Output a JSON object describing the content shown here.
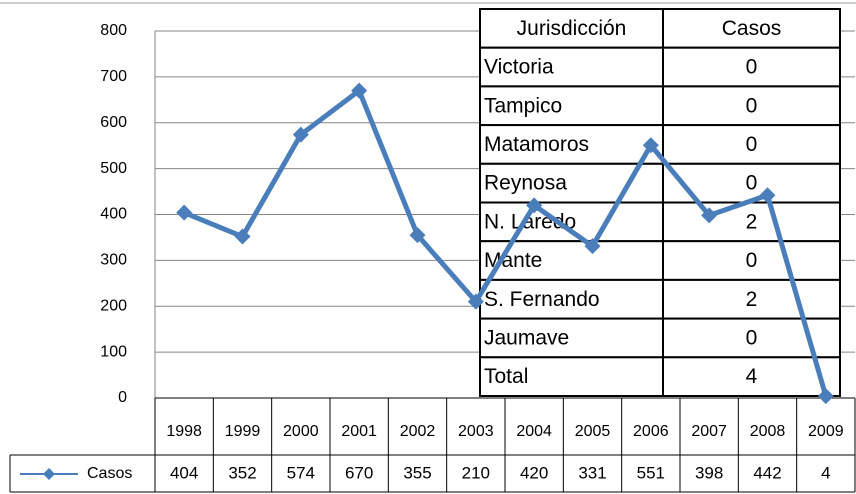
{
  "chart_data": {
    "type": "line",
    "categories": [
      "1998",
      "1999",
      "2000",
      "2001",
      "2002",
      "2003",
      "2004",
      "2005",
      "2006",
      "2007",
      "2008",
      "2009"
    ],
    "series": [
      {
        "name": "Casos",
        "color": "#4a7ebb",
        "values": [
          404,
          352,
          574,
          670,
          355,
          210,
          420,
          331,
          551,
          398,
          442,
          4
        ]
      }
    ],
    "ylim": [
      0,
      800
    ],
    "yticks": [
      0,
      100,
      200,
      300,
      400,
      500,
      600,
      700,
      800
    ],
    "grid": true
  },
  "table": {
    "header": [
      "Jurisdicción",
      "Casos"
    ],
    "rows": [
      [
        "Victoria",
        0
      ],
      [
        "Tampico",
        0
      ],
      [
        "Matamoros",
        0
      ],
      [
        "Reynosa",
        0
      ],
      [
        "N. Laredo",
        2
      ],
      [
        "Mante",
        0
      ],
      [
        "S. Fernando",
        2
      ],
      [
        "Jaumave",
        0
      ],
      [
        "Total",
        4
      ]
    ]
  }
}
